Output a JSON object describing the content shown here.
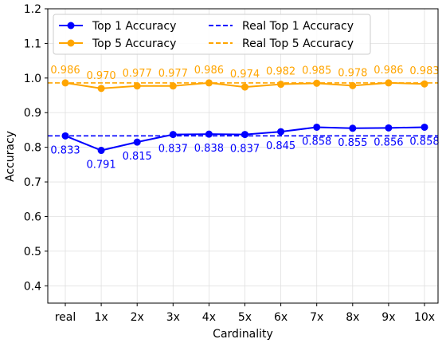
{
  "chart_data": {
    "type": "line",
    "categories": [
      "real",
      "1x",
      "2x",
      "3x",
      "4x",
      "5x",
      "6x",
      "7x",
      "8x",
      "9x",
      "10x"
    ],
    "series": [
      {
        "name": "Top 1 Accuracy",
        "color": "#0000ff",
        "values": [
          0.833,
          0.791,
          0.815,
          0.837,
          0.838,
          0.837,
          0.845,
          0.858,
          0.855,
          0.856,
          0.858
        ],
        "labels": [
          "0.833",
          "0.791",
          "0.815",
          "0.837",
          "0.838",
          "0.837",
          "0.845",
          "0.858",
          "0.855",
          "0.856",
          "0.858"
        ]
      },
      {
        "name": "Top 5 Accuracy",
        "color": "#ffa500",
        "values": [
          0.986,
          0.97,
          0.977,
          0.977,
          0.986,
          0.974,
          0.982,
          0.985,
          0.978,
          0.986,
          0.983
        ],
        "labels": [
          "0.986",
          "0.970",
          "0.977",
          "0.977",
          "0.986",
          "0.974",
          "0.982",
          "0.985",
          "0.978",
          "0.986",
          "0.983"
        ]
      }
    ],
    "reference_lines": [
      {
        "name": "Real Top 1 Accuracy",
        "value": 0.833,
        "color": "#0000ff",
        "style": "dashed"
      },
      {
        "name": "Real Top 5 Accuracy",
        "value": 0.986,
        "color": "#ffa500",
        "style": "dashed"
      }
    ],
    "xlabel": "Cardinality",
    "ylabel": "Accuracy",
    "ylim": [
      0.35,
      1.2
    ],
    "yticks": [
      0.4,
      0.5,
      0.6,
      0.7,
      0.8,
      0.9,
      1.0,
      1.1,
      1.2
    ],
    "ytick_labels": [
      "0.4",
      "0.5",
      "0.6",
      "0.7",
      "0.8",
      "0.9",
      "1.0",
      "1.1",
      "1.2"
    ],
    "grid": true,
    "legend_position": "top"
  }
}
